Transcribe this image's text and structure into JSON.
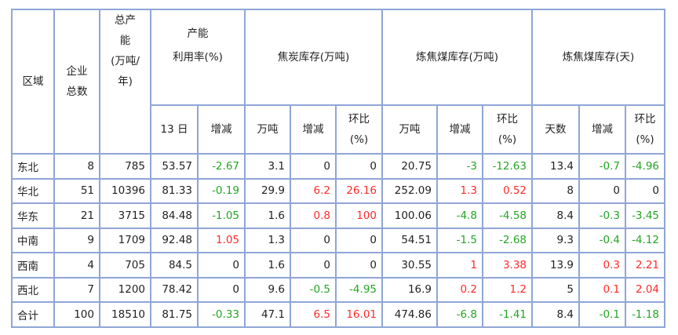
{
  "colors": {
    "border": "#8fa6d6",
    "positive": "#ff2a2a",
    "negative": "#24a524"
  },
  "header": {
    "region": "区域",
    "companies": "企业总数",
    "capacity": "总产能(万吨/年)",
    "capacity_lines": [
      "总产",
      "能",
      "(万吨/",
      "年)"
    ],
    "utilization_lines": [
      "产能",
      "利用率(%)"
    ],
    "coke_stock": "焦炭库存(万吨)",
    "coal_stock": "炼焦煤库存(万吨)",
    "coal_days": "炼焦煤库存(天)",
    "sub": [
      "13 日",
      "增减",
      "万吨",
      "增减",
      "环比(%)",
      "万吨",
      "增减",
      "环比(%)",
      "天数",
      "增减",
      "环比(%)"
    ],
    "companies_lines": [
      "企业",
      "总数"
    ]
  },
  "rows": [
    [
      "东北",
      "8",
      "785",
      "53.57",
      "-2.67",
      "3.1",
      "0",
      "0",
      "20.75",
      "-3",
      "-12.63",
      "13.4",
      "-0.7",
      "-4.96"
    ],
    [
      "华北",
      "51",
      "10396",
      "81.33",
      "-0.19",
      "29.9",
      "6.2",
      "26.16",
      "252.09",
      "1.3",
      "0.52",
      "8",
      "0",
      "0"
    ],
    [
      "华东",
      "21",
      "3715",
      "84.48",
      "-1.05",
      "1.6",
      "0.8",
      "100",
      "100.06",
      "-4.8",
      "-4.58",
      "8.4",
      "-0.3",
      "-3.45"
    ],
    [
      "中南",
      "9",
      "1709",
      "92.48",
      "1.05",
      "1.3",
      "0",
      "0",
      "54.51",
      "-1.5",
      "-2.68",
      "9.3",
      "-0.4",
      "-4.12"
    ],
    [
      "西南",
      "4",
      "705",
      "84.5",
      "0",
      "1.6",
      "0",
      "0",
      "30.55",
      "1",
      "3.38",
      "13.9",
      "0.3",
      "2.21"
    ],
    [
      "西北",
      "7",
      "1200",
      "78.42",
      "0",
      "9.6",
      "-0.5",
      "-4.95",
      "16.9",
      "0.2",
      "1.2",
      "5",
      "0.1",
      "2.04"
    ],
    [
      "合计",
      "100",
      "18510",
      "81.75",
      "-0.33",
      "47.1",
      "6.5",
      "16.01",
      "474.86",
      "-6.8",
      "-1.41",
      "8.4",
      "-0.1",
      "-1.18"
    ]
  ]
}
